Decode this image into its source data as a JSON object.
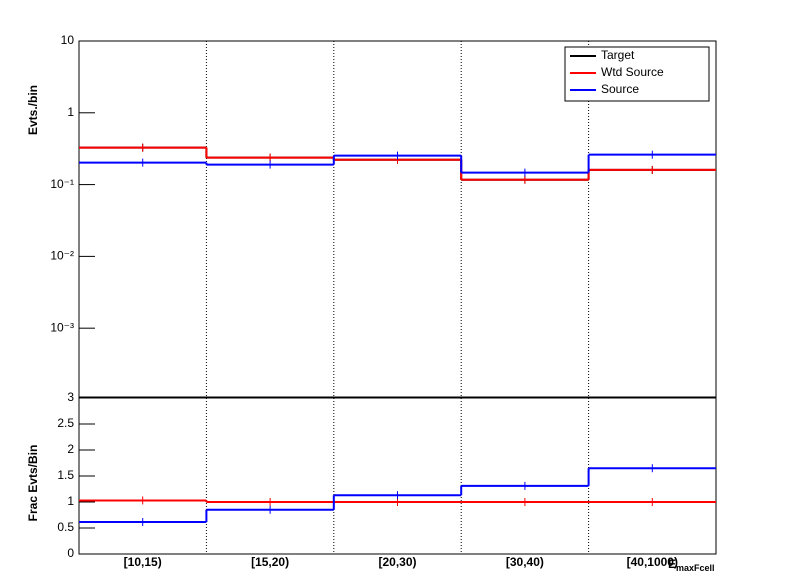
{
  "chart_data": [
    {
      "type": "step",
      "y_label": "Evts./bin",
      "log_y": true,
      "ylim": [
        0.00011,
        10
      ],
      "yticks": [
        {
          "value": 10,
          "label": "10"
        },
        {
          "value": 1,
          "label": "1"
        },
        {
          "value": 0.1,
          "label": "10⁻¹"
        },
        {
          "value": 0.01,
          "label": "10⁻²"
        },
        {
          "value": 0.001,
          "label": "10⁻³"
        }
      ],
      "grid_x": true,
      "legend": "top-right",
      "series": [
        {
          "name": "Target",
          "color": "#000000",
          "values": [
            0.327,
            0.237,
            0.222,
            0.117,
            0.16
          ]
        },
        {
          "name": "Wtd Source",
          "color": "#ff0000",
          "values": [
            0.327,
            0.237,
            0.222,
            0.117,
            0.16
          ]
        },
        {
          "name": "Source",
          "color": "#0000ff",
          "values": [
            0.202,
            0.19,
            0.253,
            0.147,
            0.261
          ]
        }
      ]
    },
    {
      "type": "step",
      "y_label": "Frac Evts/Bin",
      "x_label": "E",
      "x_label_sub": "maxFcell",
      "categories": [
        "[10,15)",
        "[15,20)",
        "[20,30)",
        "[30,40)",
        "[40,1000)"
      ],
      "ylim": [
        0,
        3
      ],
      "yticks": [
        0,
        0.5,
        1,
        1.5,
        2,
        2.5,
        3
      ],
      "grid_x": true,
      "series": [
        {
          "name": "Wtd Source",
          "color": "#ff0000",
          "values": [
            1.03,
            1.0,
            1.0,
            1.0,
            1.0
          ]
        },
        {
          "name": "Source",
          "color": "#0000ff",
          "values": [
            0.615,
            0.85,
            1.13,
            1.31,
            1.65
          ]
        }
      ]
    }
  ]
}
